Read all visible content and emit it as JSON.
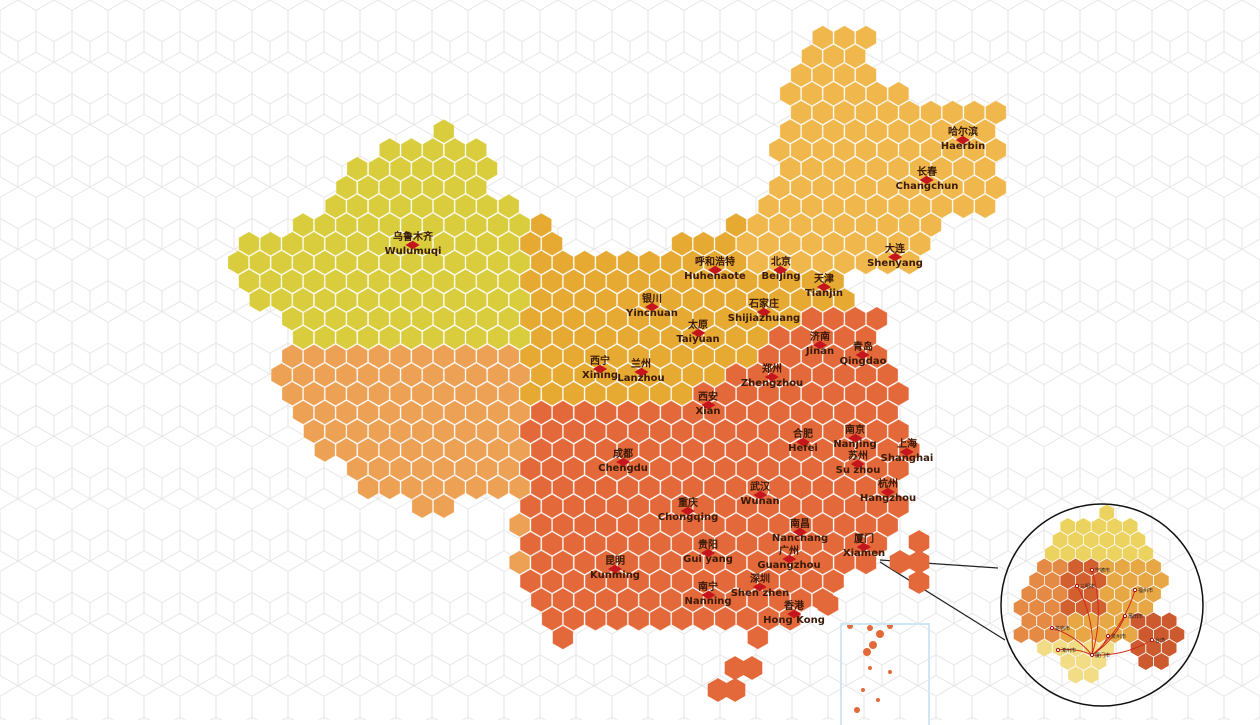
{
  "colors": {
    "northwest": "#d9cd3e",
    "tibet": "#eda155",
    "north": "#e6a932",
    "northeast": "#f0b84c",
    "south": "#e4693a",
    "marker": "#c4161c",
    "background_grid": "#e4e4e4"
  },
  "cities": [
    {
      "cn": "乌鲁木齐",
      "en": "Wulumuqi"
    },
    {
      "cn": "哈尔滨",
      "en": "Haerbin"
    },
    {
      "cn": "长春",
      "en": "Changchun"
    },
    {
      "cn": "大连",
      "en": "Shenyang"
    },
    {
      "cn": "呼和浩特",
      "en": "Huhehaote"
    },
    {
      "cn": "北京",
      "en": "Beijing"
    },
    {
      "cn": "天津",
      "en": "Tianjin"
    },
    {
      "cn": "银川",
      "en": "Yinchuan"
    },
    {
      "cn": "石家庄",
      "en": "Shijiazhuang"
    },
    {
      "cn": "太原",
      "en": "Taiyuan"
    },
    {
      "cn": "济南",
      "en": "Jinan"
    },
    {
      "cn": "青岛",
      "en": "Qingdao"
    },
    {
      "cn": "西宁",
      "en": "Xining"
    },
    {
      "cn": "兰州",
      "en": "Lanzhou"
    },
    {
      "cn": "郑州",
      "en": "Zhengzhou"
    },
    {
      "cn": "西安",
      "en": "Xian"
    },
    {
      "cn": "合肥",
      "en": "Hefei"
    },
    {
      "cn": "南京",
      "en": "Nanjing"
    },
    {
      "cn": "苏州",
      "en": "Su zhou"
    },
    {
      "cn": "上海",
      "en": "Shanghai"
    },
    {
      "cn": "成都",
      "en": "Chengdu"
    },
    {
      "cn": "武汉",
      "en": "Wuhan"
    },
    {
      "cn": "杭州",
      "en": "Hangzhou"
    },
    {
      "cn": "重庆",
      "en": "Chongqing"
    },
    {
      "cn": "南昌",
      "en": "Nanchang"
    },
    {
      "cn": "厦门",
      "en": "Xiamen"
    },
    {
      "cn": "昆明",
      "en": "Kunming"
    },
    {
      "cn": "贵阳",
      "en": "Gui yang"
    },
    {
      "cn": "广州",
      "en": "Guangzhou"
    },
    {
      "cn": "深圳",
      "en": "Shen zhen"
    },
    {
      "cn": "南宁",
      "en": "Nanning"
    },
    {
      "cn": "香港",
      "en": "Hong Kong"
    }
  ],
  "magnifier": {
    "labels": [
      "宁德市",
      "福州市",
      "三明市",
      "莆田市",
      "泉州市",
      "龙岩市",
      "漳州市",
      "厦门市",
      "台湾"
    ],
    "route_color": "#d12a1a"
  }
}
